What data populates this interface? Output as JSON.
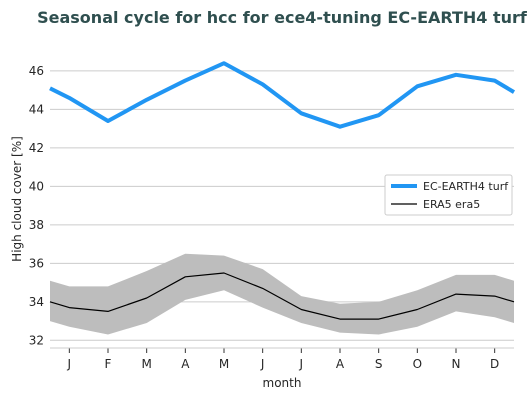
{
  "chart_data": {
    "type": "line",
    "title": "Seasonal cycle for hcc for ece4-tuning EC-EARTH4 turf",
    "xlabel": "month",
    "ylabel": "High cloud cover [%]",
    "x": [
      "J",
      "F",
      "M",
      "A",
      "M",
      "J",
      "J",
      "A",
      "S",
      "O",
      "N",
      "D"
    ],
    "ylim": [
      31.6,
      47.4
    ],
    "yticks": [
      32,
      34,
      36,
      38,
      40,
      42,
      44,
      46
    ],
    "grid": "horizontal",
    "legend_position": "center-right",
    "series": [
      {
        "name": "EC-EARTH4 turf",
        "color": "#2196f3",
        "values": [
          44.6,
          43.4,
          44.5,
          45.5,
          46.4,
          45.3,
          43.8,
          43.1,
          43.7,
          45.2,
          45.8,
          45.5
        ],
        "edge_left": 45.1,
        "edge_right": 44.9
      },
      {
        "name": "ERA5 era5",
        "color": "#000000",
        "values": [
          33.7,
          33.5,
          34.2,
          35.3,
          35.5,
          34.7,
          33.6,
          33.1,
          33.1,
          33.6,
          34.4,
          34.3
        ],
        "edge_left": 34.0,
        "edge_right": 34.0,
        "band_lower": [
          32.7,
          32.3,
          32.9,
          34.1,
          34.6,
          33.7,
          32.9,
          32.4,
          32.3,
          32.7,
          33.5,
          33.2
        ],
        "band_upper": [
          34.8,
          34.8,
          35.6,
          36.5,
          36.4,
          35.7,
          34.3,
          33.9,
          34.0,
          34.6,
          35.4,
          35.4
        ],
        "band_edge_left": [
          33.0,
          35.1
        ],
        "band_edge_right": [
          32.9,
          35.1
        ],
        "band_color": "#bdbdbd"
      }
    ]
  }
}
